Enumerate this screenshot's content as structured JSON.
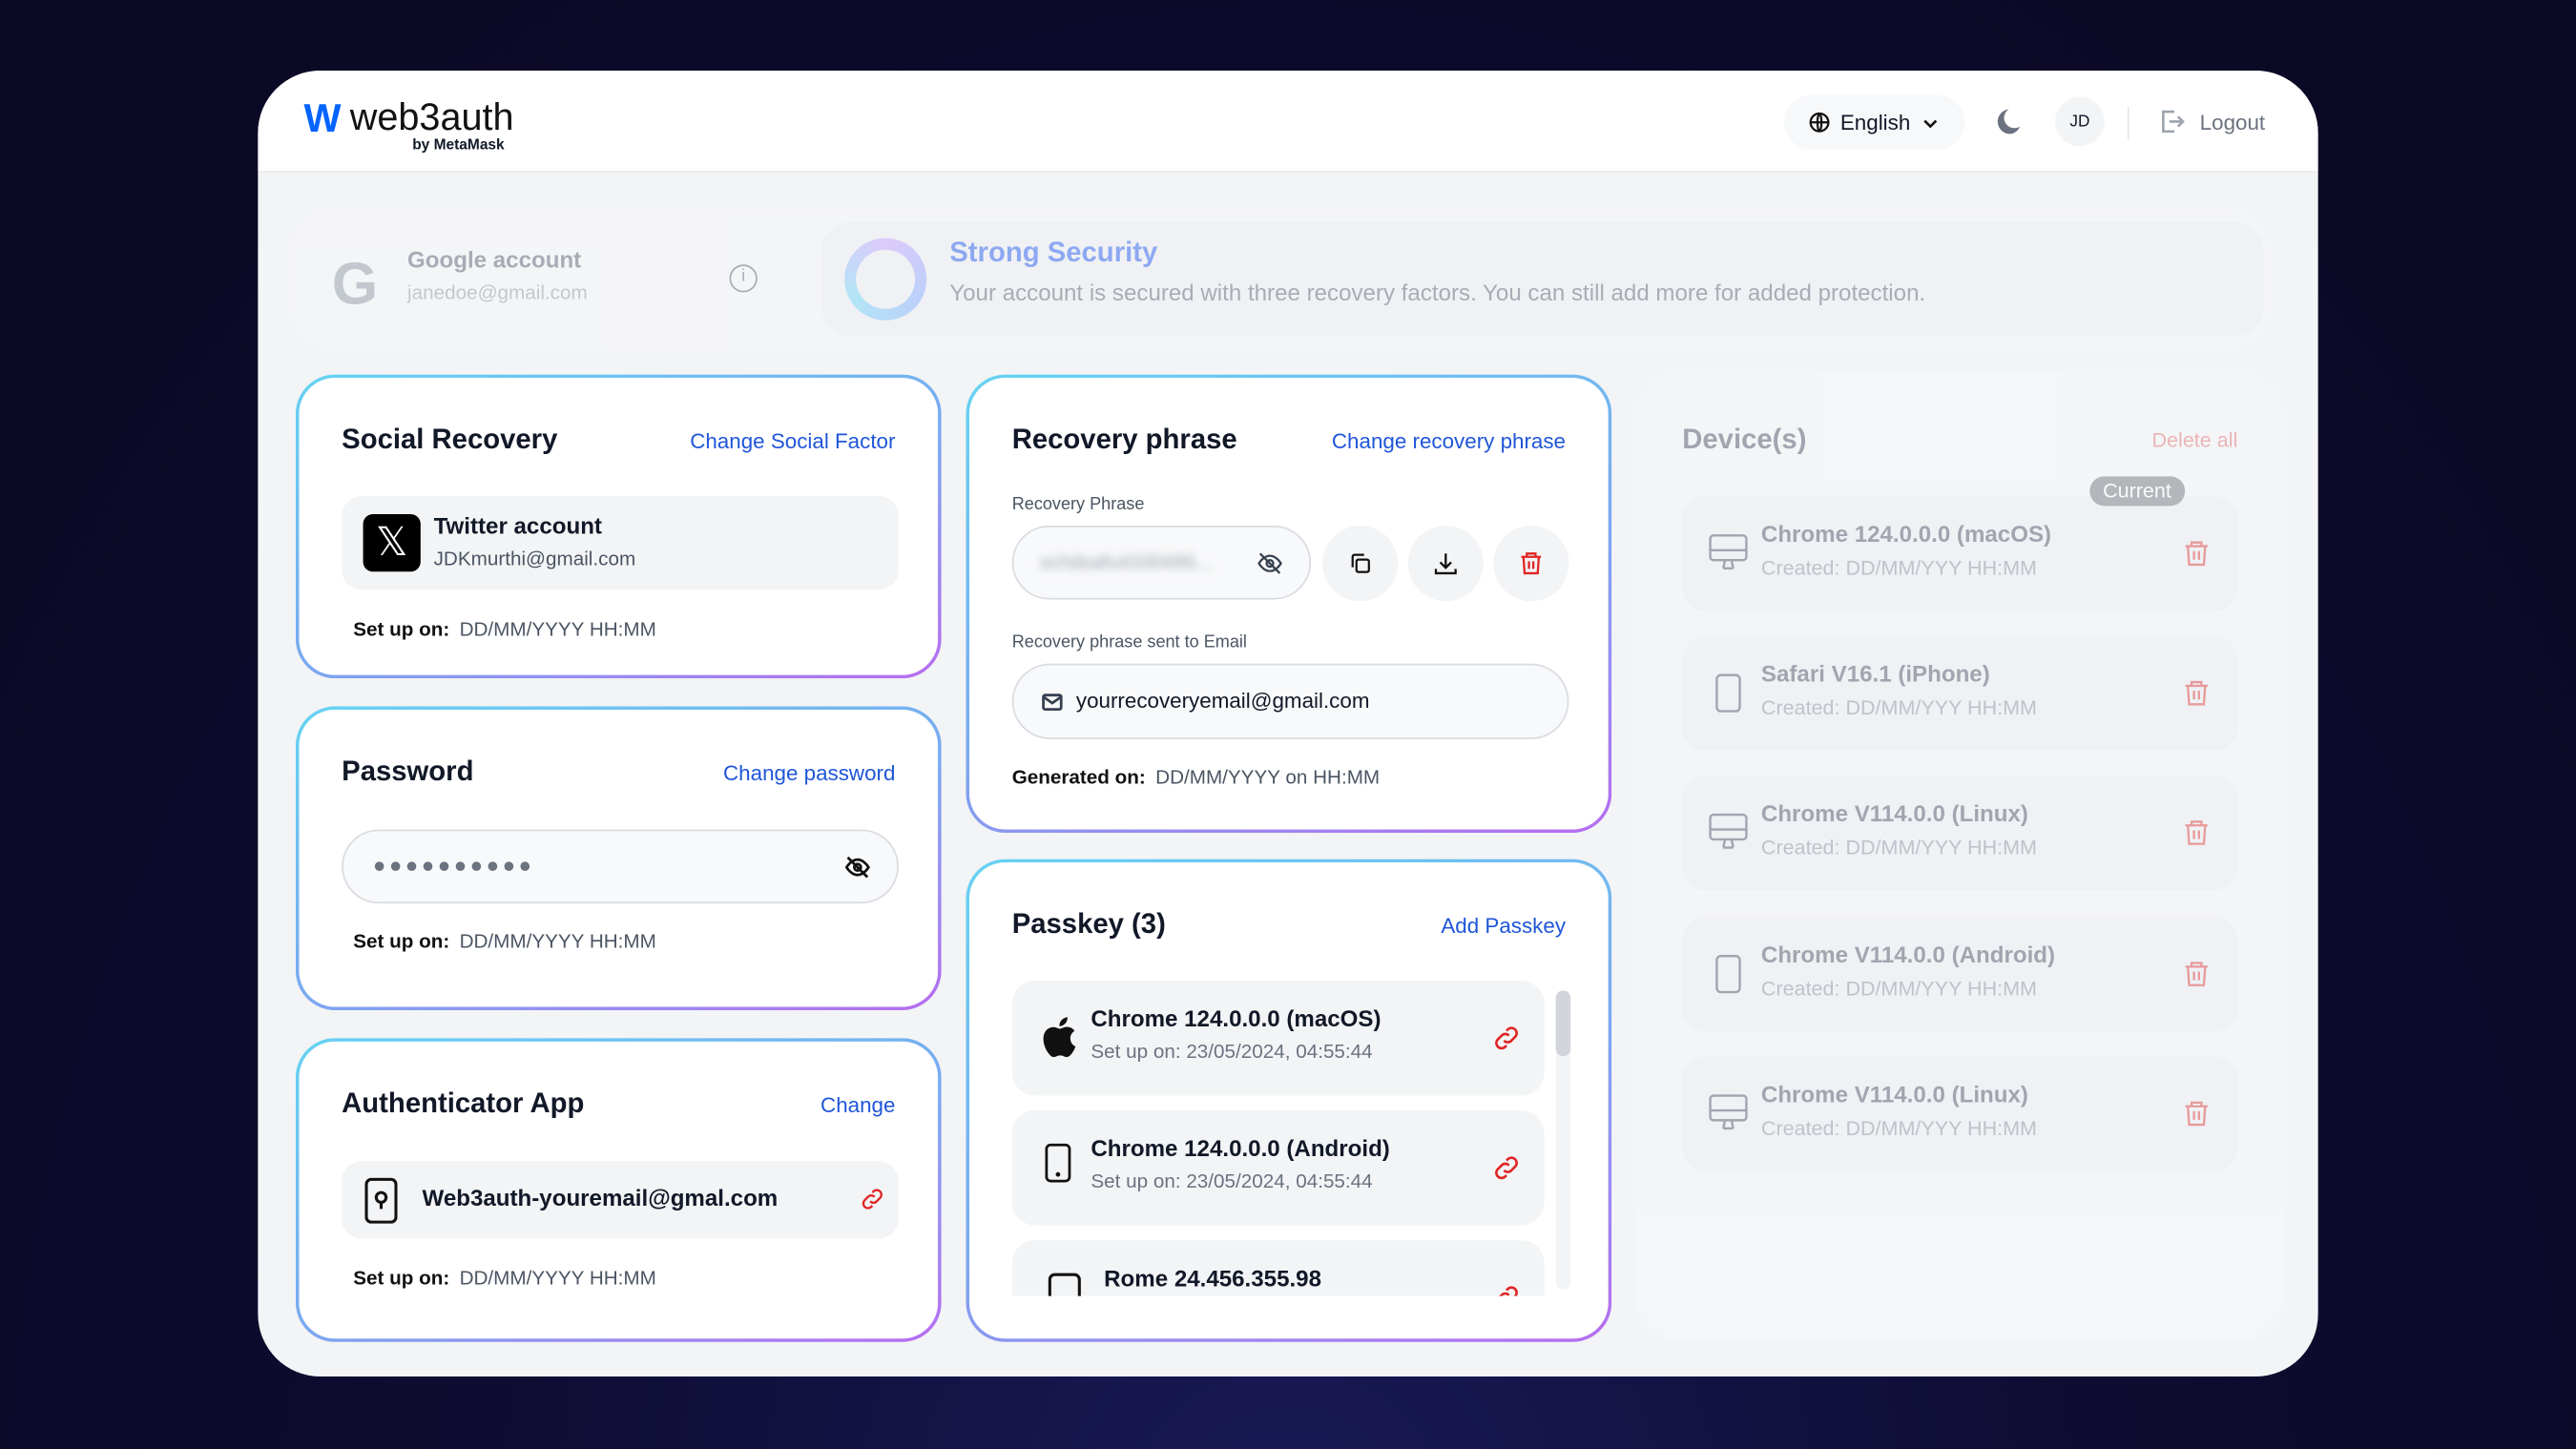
{
  "header": {
    "logo_text": "web3auth",
    "logo_sub": "by MetaMask",
    "language": "English",
    "avatar_initials": "JD",
    "logout_label": "Logout"
  },
  "account": {
    "provider": "Google account",
    "email": "janedoe@gmail.com"
  },
  "security": {
    "title": "Strong Security",
    "description": "Your account is secured with three recovery factors. You can still add more for added protection."
  },
  "social": {
    "title": "Social Recovery",
    "action": "Change Social Factor",
    "account_name": "Twitter account",
    "account_email": "JDKmurthi@gmail.com",
    "setup_label": "Set up on:",
    "setup_value": "DD/MM/YYYY HH:MM"
  },
  "password": {
    "title": "Password",
    "action": "Change password",
    "masked": "●●●●●●●●●●",
    "setup_label": "Set up on:",
    "setup_value": "DD/MM/YYYY HH:MM"
  },
  "authenticator": {
    "title": "Authenticator App",
    "action": "Change",
    "account": "Web3auth-youremail@gmal.com",
    "setup_label": "Set up on:",
    "setup_value": "DD/MM/YYYY HH:MM"
  },
  "recovery": {
    "title": "Recovery phrase",
    "action": "Change recovery phrase",
    "phrase_label": "Recovery Phrase",
    "phrase_blurred": "schdsafu4330495...",
    "email_label": "Recovery phrase sent to Email",
    "email": "yourrecoveryemail@gmail.com",
    "generated_label": "Generated on:",
    "generated_value": "DD/MM/YYYY on HH:MM"
  },
  "passkey": {
    "title": "Passkey (3)",
    "action": "Add Passkey",
    "items": [
      {
        "name": "Chrome 124.0.0.0 (macOS)",
        "setup": "Set up on: 23/05/2024, 04:55:44",
        "icon": "apple-icon"
      },
      {
        "name": "Chrome 124.0.0.0 (Android)",
        "setup": "Set up on: 23/05/2024, 04:55:44",
        "icon": "phone-icon"
      },
      {
        "name": "Rome 24.456.355.98",
        "setup": "",
        "icon": "phone-icon"
      }
    ]
  },
  "devices": {
    "title": "Device(s)",
    "action": "Delete all",
    "current_badge": "Current",
    "items": [
      {
        "name": "Chrome 124.0.0.0 (macOS)",
        "created": "Created: DD/MM/YYY HH:MM",
        "icon": "desktop-icon"
      },
      {
        "name": "Safari V16.1 (iPhone)",
        "created": "Created: DD/MM/YYY HH:MM",
        "icon": "phone-icon"
      },
      {
        "name": "Chrome V114.0.0 (Linux)",
        "created": "Created: DD/MM/YYY HH:MM",
        "icon": "desktop-icon"
      },
      {
        "name": "Chrome V114.0.0 (Android)",
        "created": "Created: DD/MM/YYY HH:MM",
        "icon": "phone-icon"
      },
      {
        "name": "Chrome V114.0.0 (Linux)",
        "created": "Created: DD/MM/YYY HH:MM",
        "icon": "desktop-icon"
      }
    ]
  },
  "colors": {
    "accent": "#1f56d8",
    "danger": "#e02424",
    "brand": "#0364ff"
  }
}
